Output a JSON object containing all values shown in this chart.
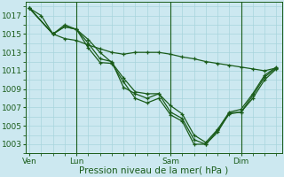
{
  "background_color": "#cce8f0",
  "grid_color": "#a8d4dc",
  "line_color": "#1a5c1a",
  "title": "Pression niveau de la mer( hPa )",
  "xlabel_ticks": [
    "Ven",
    "Lun",
    "Sam",
    "Dim"
  ],
  "xlabel_tick_positions": [
    0,
    4,
    12,
    18
  ],
  "ylabel_ticks": [
    1003,
    1005,
    1007,
    1009,
    1011,
    1013,
    1015,
    1017
  ],
  "ylim": [
    1002.0,
    1018.5
  ],
  "xlim": [
    -0.3,
    21.5
  ],
  "series": [
    {
      "x": [
        0,
        1,
        2,
        3,
        4,
        5,
        6,
        7,
        8,
        9,
        10,
        11,
        12,
        13,
        14,
        15,
        16,
        17,
        18,
        19,
        20,
        21
      ],
      "y": [
        1017.8,
        1017.0,
        1015.0,
        1014.5,
        1014.3,
        1013.8,
        1013.4,
        1013.0,
        1012.8,
        1013.0,
        1013.0,
        1013.0,
        1012.8,
        1012.5,
        1012.3,
        1012.0,
        1011.8,
        1011.6,
        1011.4,
        1011.2,
        1011.0,
        1011.3
      ]
    },
    {
      "x": [
        0,
        2,
        3,
        4,
        5,
        6,
        7,
        8,
        9,
        10,
        11,
        12,
        13,
        14,
        15,
        16,
        17,
        18,
        19,
        20,
        21
      ],
      "y": [
        1017.8,
        1015.0,
        1015.8,
        1015.5,
        1014.4,
        1013.0,
        1011.9,
        1010.2,
        1008.7,
        1008.5,
        1008.5,
        1006.5,
        1005.8,
        1003.5,
        1003.0,
        1004.3,
        1006.4,
        1006.5,
        1008.3,
        1010.3,
        1011.3
      ]
    },
    {
      "x": [
        0,
        2,
        3,
        4,
        5,
        6,
        7,
        8,
        9,
        10,
        11,
        12,
        13,
        14,
        15,
        16,
        17,
        18,
        19,
        20,
        21
      ],
      "y": [
        1017.8,
        1015.0,
        1015.8,
        1015.5,
        1013.5,
        1011.9,
        1011.8,
        1009.8,
        1008.0,
        1007.5,
        1008.0,
        1006.2,
        1005.5,
        1003.0,
        1003.0,
        1004.5,
        1006.3,
        1006.5,
        1008.0,
        1010.0,
        1011.2
      ]
    },
    {
      "x": [
        0,
        2,
        3,
        4,
        5,
        6,
        7,
        8,
        9,
        10,
        11,
        12,
        13,
        14,
        15,
        16,
        17,
        18,
        19,
        20,
        21
      ],
      "y": [
        1017.8,
        1015.0,
        1016.0,
        1015.5,
        1014.0,
        1012.3,
        1012.0,
        1009.2,
        1008.5,
        1008.0,
        1008.5,
        1007.2,
        1006.3,
        1004.0,
        1003.2,
        1004.6,
        1006.5,
        1006.8,
        1008.5,
        1010.5,
        1011.4
      ]
    }
  ],
  "vlines": [
    4,
    12,
    18
  ],
  "marker": "+",
  "markersize": 3.5,
  "linewidth": 0.9
}
